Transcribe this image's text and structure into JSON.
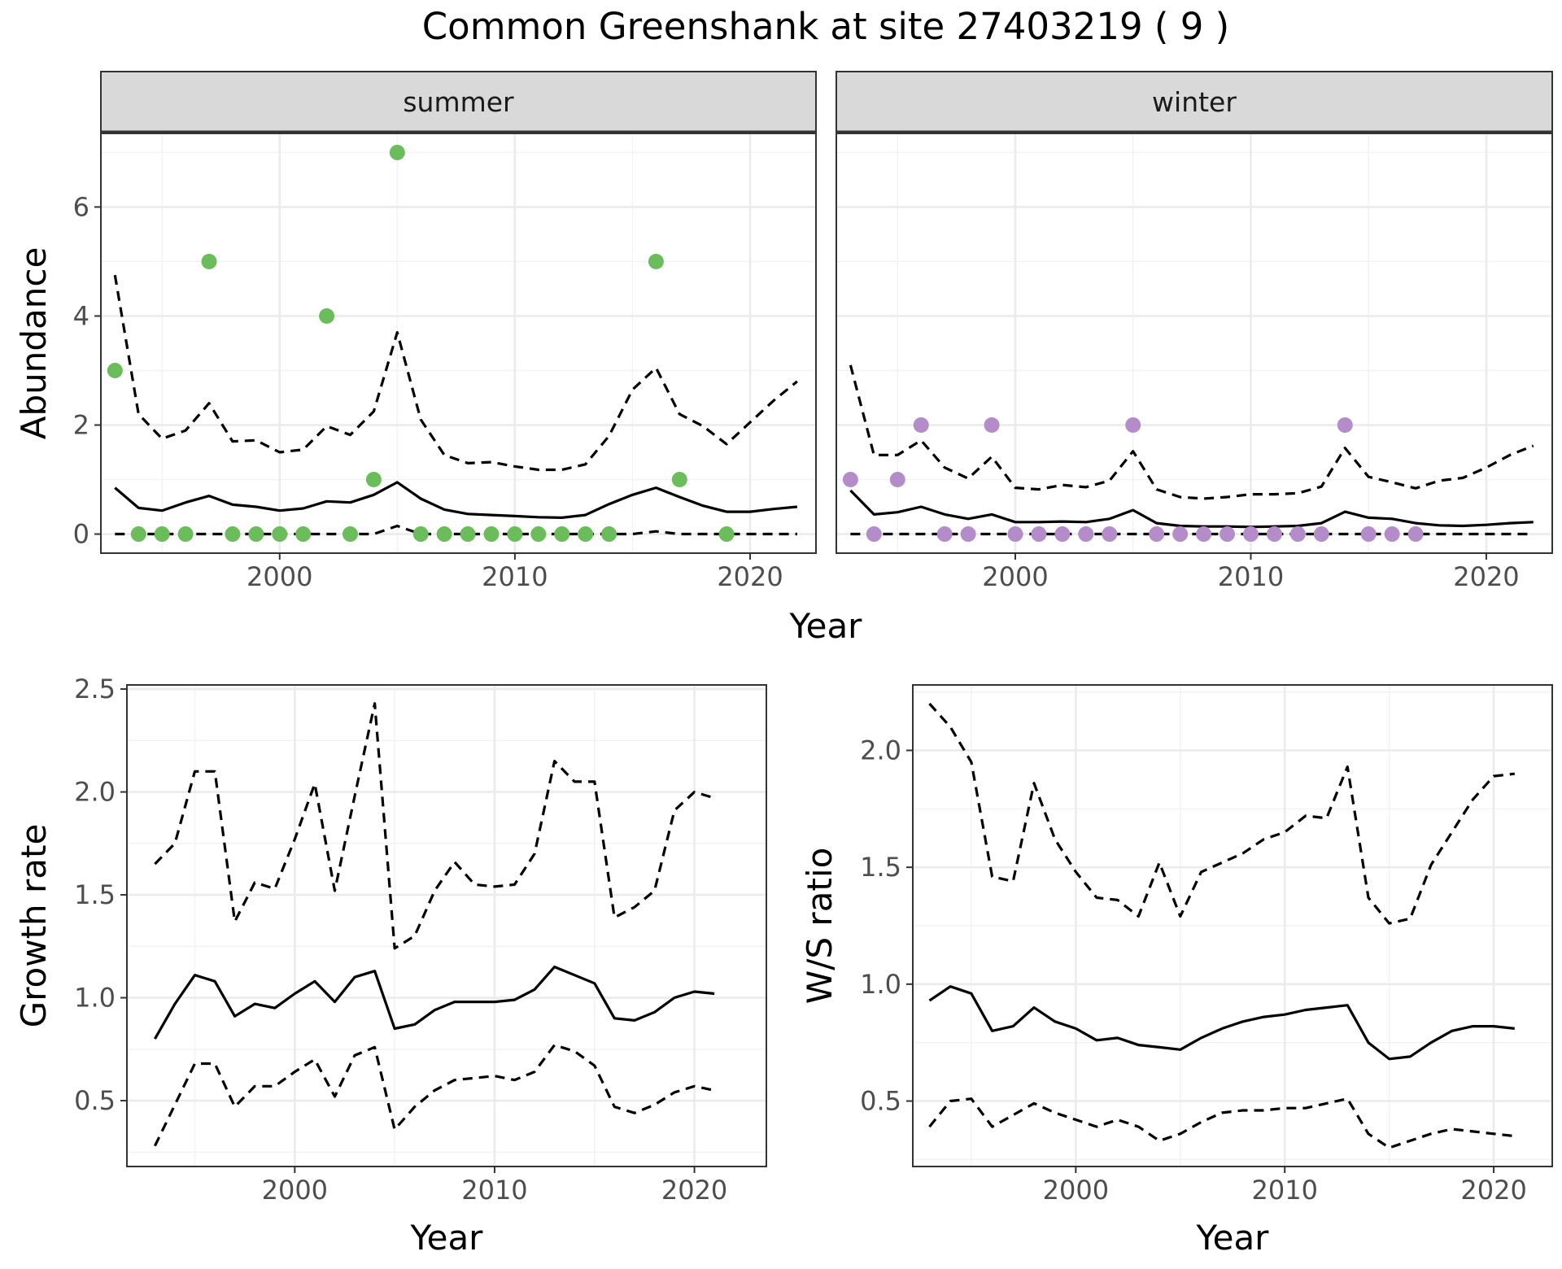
{
  "title": "Common Greenshank at site 27403219 ( 9 )",
  "colors": {
    "summer": "#6abd5a",
    "winter": "#b48cc9",
    "line": "#000000",
    "strip": "#d9d9d9"
  },
  "chart_data": [
    {
      "id": "abundance",
      "type": "scatter",
      "facets": [
        "summer",
        "winter"
      ],
      "xlabel": "Year",
      "ylabel": "Abundance",
      "xlim": [
        1992.4,
        2022.8
      ],
      "ylim": [
        -0.35,
        7.35
      ],
      "xticks": [
        2000,
        2010,
        2020
      ],
      "yticks": [
        0,
        2,
        4,
        6
      ],
      "grid": true,
      "panels": [
        {
          "strip": "summer",
          "points": {
            "x": [
              1993,
              1994,
              1995,
              1996,
              1997,
              1998,
              1999,
              2000,
              2001,
              2002,
              2003,
              2004,
              2005,
              2006,
              2007,
              2008,
              2009,
              2010,
              2011,
              2012,
              2013,
              2014,
              2016,
              2017,
              2019
            ],
            "y": [
              3,
              0,
              0,
              0,
              5,
              0,
              0,
              0,
              0,
              4,
              0,
              1,
              7,
              0,
              0,
              0,
              0,
              0,
              0,
              0,
              0,
              0,
              5,
              1,
              0
            ]
          },
          "fit": {
            "x": [
              1993,
              1994,
              1995,
              1996,
              1997,
              1998,
              1999,
              2000,
              2001,
              2002,
              2003,
              2004,
              2005,
              2006,
              2007,
              2008,
              2009,
              2010,
              2011,
              2012,
              2013,
              2014,
              2015,
              2016,
              2017,
              2018,
              2019,
              2020,
              2021,
              2022
            ],
            "mean": [
              0.85,
              0.48,
              0.43,
              0.58,
              0.7,
              0.54,
              0.5,
              0.43,
              0.47,
              0.6,
              0.58,
              0.72,
              0.95,
              0.65,
              0.45,
              0.37,
              0.35,
              0.33,
              0.31,
              0.3,
              0.35,
              0.55,
              0.72,
              0.85,
              0.68,
              0.52,
              0.41,
              0.41,
              0.46,
              0.5
            ],
            "lower": [
              0,
              0,
              0,
              0,
              0,
              0,
              0,
              0,
              0,
              0,
              0,
              0,
              0.15,
              0,
              0,
              0,
              0,
              0,
              0,
              0,
              0,
              0,
              0,
              0.05,
              0,
              0,
              0,
              0,
              0,
              0
            ],
            "upper": [
              4.75,
              2.2,
              1.75,
              1.9,
              2.4,
              1.7,
              1.72,
              1.5,
              1.55,
              1.98,
              1.82,
              2.25,
              3.7,
              2.1,
              1.45,
              1.3,
              1.32,
              1.24,
              1.18,
              1.18,
              1.28,
              1.8,
              2.65,
              3.05,
              2.2,
              1.98,
              1.65,
              2.05,
              2.45,
              2.8
            ]
          }
        },
        {
          "strip": "winter",
          "points": {
            "x": [
              1993,
              1994,
              1995,
              1996,
              1997,
              1998,
              1999,
              2000,
              2001,
              2002,
              2003,
              2004,
              2005,
              2006,
              2007,
              2008,
              2009,
              2010,
              2011,
              2012,
              2013,
              2014,
              2015,
              2016,
              2017
            ],
            "y": [
              1,
              0,
              1,
              2,
              0,
              0,
              2,
              0,
              0,
              0,
              0,
              0,
              2,
              0,
              0,
              0,
              0,
              0,
              0,
              0,
              0,
              2,
              0,
              0,
              0
            ]
          },
          "fit": {
            "x": [
              1993,
              1994,
              1995,
              1996,
              1997,
              1998,
              1999,
              2000,
              2001,
              2002,
              2003,
              2004,
              2005,
              2006,
              2007,
              2008,
              2009,
              2010,
              2011,
              2012,
              2013,
              2014,
              2015,
              2016,
              2017,
              2018,
              2019,
              2020,
              2021,
              2022
            ],
            "mean": [
              0.8,
              0.36,
              0.4,
              0.5,
              0.36,
              0.28,
              0.36,
              0.22,
              0.22,
              0.23,
              0.22,
              0.28,
              0.44,
              0.2,
              0.15,
              0.14,
              0.14,
              0.13,
              0.14,
              0.15,
              0.2,
              0.41,
              0.3,
              0.28,
              0.2,
              0.16,
              0.15,
              0.17,
              0.2,
              0.22
            ],
            "lower": [
              0,
              0,
              0,
              0,
              0,
              0,
              0,
              0,
              0,
              0,
              0,
              0,
              0,
              0,
              0,
              0,
              0,
              0,
              0,
              0,
              0,
              0,
              0,
              0,
              0,
              0,
              0,
              0,
              0,
              0
            ],
            "upper": [
              3.1,
              1.45,
              1.45,
              1.72,
              1.22,
              1.02,
              1.42,
              0.85,
              0.82,
              0.9,
              0.86,
              0.98,
              1.52,
              0.82,
              0.68,
              0.65,
              0.68,
              0.73,
              0.73,
              0.75,
              0.87,
              1.58,
              1.05,
              0.95,
              0.84,
              0.98,
              1.03,
              1.22,
              1.45,
              1.62
            ]
          }
        }
      ]
    },
    {
      "id": "growth",
      "type": "line",
      "xlabel": "Year",
      "ylabel": "Growth rate",
      "xlim": [
        1991.6,
        2023.6
      ],
      "ylim": [
        0.18,
        2.52
      ],
      "xticks": [
        2000,
        2010,
        2020
      ],
      "yticks": [
        0.5,
        1.0,
        1.5,
        2.0,
        2.5
      ],
      "ytick_labels": [
        "0.5",
        "1.0",
        "1.5",
        "2.0",
        "2.5"
      ],
      "grid": true,
      "x": [
        1993,
        1994,
        1995,
        1996,
        1997,
        1998,
        1999,
        2000,
        2001,
        2002,
        2003,
        2004,
        2005,
        2006,
        2007,
        2008,
        2009,
        2010,
        2011,
        2012,
        2013,
        2014,
        2015,
        2016,
        2017,
        2018,
        2019,
        2020,
        2021
      ],
      "mean": [
        0.8,
        0.97,
        1.11,
        1.08,
        0.91,
        0.97,
        0.95,
        1.02,
        1.08,
        0.98,
        1.1,
        1.13,
        0.85,
        0.87,
        0.94,
        0.98,
        0.98,
        0.98,
        0.99,
        1.04,
        1.15,
        1.11,
        1.07,
        0.9,
        0.89,
        0.93,
        1.0,
        1.03,
        1.02
      ],
      "lower": [
        0.28,
        0.48,
        0.68,
        0.68,
        0.47,
        0.57,
        0.57,
        0.64,
        0.7,
        0.52,
        0.72,
        0.76,
        0.36,
        0.47,
        0.55,
        0.6,
        0.61,
        0.62,
        0.6,
        0.64,
        0.77,
        0.74,
        0.67,
        0.47,
        0.44,
        0.48,
        0.54,
        0.57,
        0.55
      ],
      "upper": [
        1.65,
        1.75,
        2.1,
        2.1,
        1.37,
        1.56,
        1.53,
        1.77,
        2.04,
        1.52,
        1.98,
        2.43,
        1.24,
        1.3,
        1.52,
        1.66,
        1.55,
        1.54,
        1.55,
        1.7,
        2.15,
        2.05,
        2.05,
        1.39,
        1.44,
        1.52,
        1.91,
        2.0,
        1.97
      ]
    },
    {
      "id": "ws",
      "type": "line",
      "xlabel": "Year",
      "ylabel": "W/S ratio",
      "xlim": [
        1992.2,
        2022.8
      ],
      "ylim": [
        0.22,
        2.28
      ],
      "xticks": [
        2000,
        2010,
        2020
      ],
      "yticks": [
        0.5,
        1.0,
        1.5,
        2.0
      ],
      "ytick_labels": [
        "0.5",
        "1.0",
        "1.5",
        "2.0"
      ],
      "grid": true,
      "x": [
        1993,
        1994,
        1995,
        1996,
        1997,
        1998,
        1999,
        2000,
        2001,
        2002,
        2003,
        2004,
        2005,
        2006,
        2007,
        2008,
        2009,
        2010,
        2011,
        2012,
        2013,
        2014,
        2015,
        2016,
        2017,
        2018,
        2019,
        2020,
        2021
      ],
      "mean": [
        0.93,
        0.99,
        0.96,
        0.8,
        0.82,
        0.9,
        0.84,
        0.81,
        0.76,
        0.77,
        0.74,
        0.73,
        0.72,
        0.77,
        0.81,
        0.84,
        0.86,
        0.87,
        0.89,
        0.9,
        0.91,
        0.75,
        0.68,
        0.69,
        0.75,
        0.8,
        0.82,
        0.82,
        0.81
      ],
      "lower": [
        0.39,
        0.5,
        0.51,
        0.39,
        0.44,
        0.49,
        0.45,
        0.42,
        0.39,
        0.42,
        0.39,
        0.33,
        0.36,
        0.41,
        0.45,
        0.46,
        0.46,
        0.47,
        0.47,
        0.49,
        0.51,
        0.36,
        0.3,
        0.33,
        0.36,
        0.38,
        0.37,
        0.36,
        0.35
      ],
      "upper": [
        2.2,
        2.1,
        1.95,
        1.46,
        1.44,
        1.86,
        1.62,
        1.48,
        1.37,
        1.36,
        1.29,
        1.52,
        1.29,
        1.48,
        1.52,
        1.56,
        1.62,
        1.65,
        1.72,
        1.71,
        1.93,
        1.37,
        1.26,
        1.28,
        1.51,
        1.65,
        1.79,
        1.89,
        1.9
      ]
    }
  ]
}
